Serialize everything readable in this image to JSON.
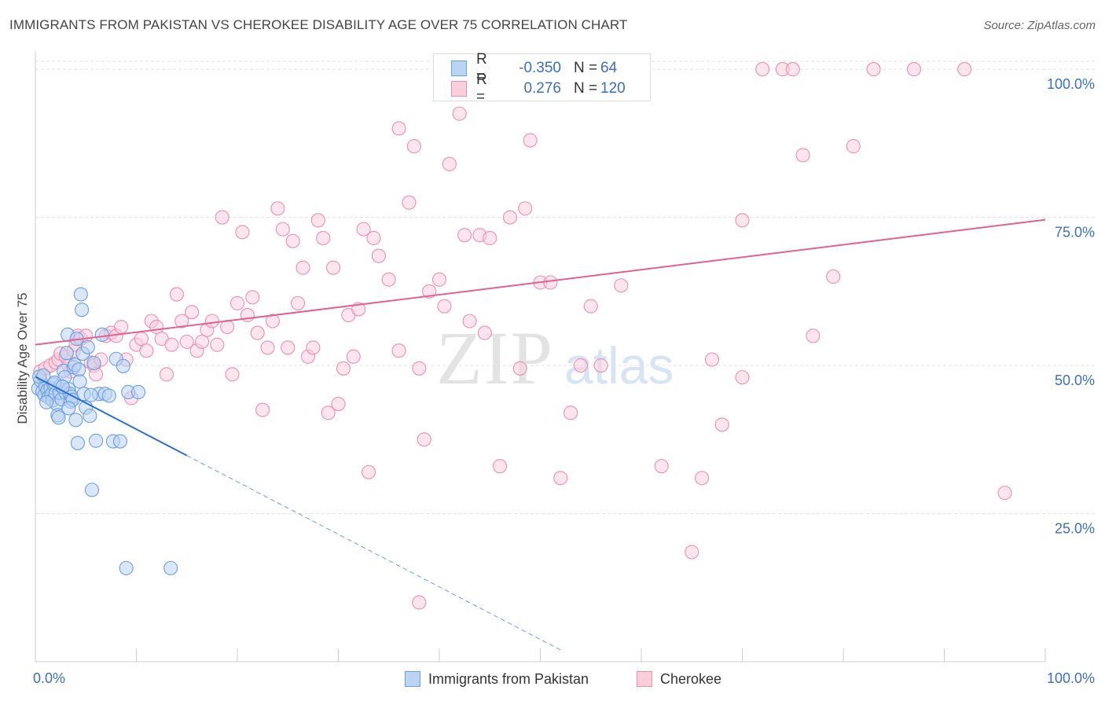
{
  "chart_data": {
    "type": "scatter",
    "title": "IMMIGRANTS FROM PAKISTAN VS CHEROKEE DISABILITY AGE OVER 75 CORRELATION CHART",
    "source": "Source: ZipAtlas.com",
    "ylabel": "Disability Age Over 75",
    "xlabel": "",
    "xlim": [
      0,
      100
    ],
    "ylim": [
      0,
      102
    ],
    "x_tick_labels": [
      "0.0%",
      "100.0%"
    ],
    "y_tick_labels": [
      {
        "value": 25,
        "label": "25.0%"
      },
      {
        "value": 50,
        "label": "50.0%"
      },
      {
        "value": 75,
        "label": "75.0%"
      },
      {
        "value": 100,
        "label": "100.0%"
      }
    ],
    "watermark": {
      "zip": "ZIP",
      "atlas": "atlas"
    },
    "legend_stats": [
      {
        "series": "Immigrants from Pakistan",
        "r_label": "R =",
        "r": "-0.350",
        "n_label": "N =",
        "n": "64"
      },
      {
        "series": "Cherokee",
        "r_label": "R =",
        "r": "0.276",
        "n_label": "N =",
        "n": "120"
      }
    ],
    "series": [
      {
        "name": "Immigrants from Pakistan",
        "color": "#6a9ee0",
        "fill": "#bcd4f3",
        "trend": {
          "x0": 0,
          "y0": 48.1,
          "x1": 15,
          "y1": 34.8,
          "dash_to_x": 52
        },
        "points": [
          [
            0.3,
            46.1
          ],
          [
            0.5,
            47.5
          ],
          [
            0.7,
            45.6
          ],
          [
            0.9,
            45.0
          ],
          [
            1.0,
            46.5
          ],
          [
            1.2,
            45.8
          ],
          [
            1.3,
            44.6
          ],
          [
            1.5,
            46.2
          ],
          [
            1.6,
            45.1
          ],
          [
            1.7,
            44.1
          ],
          [
            1.8,
            46.8
          ],
          [
            2.0,
            45.3
          ],
          [
            2.1,
            43.5
          ],
          [
            2.2,
            41.6
          ],
          [
            2.3,
            41.2
          ],
          [
            2.4,
            45.4
          ],
          [
            2.5,
            46.6
          ],
          [
            2.6,
            44.3
          ],
          [
            2.8,
            49.1
          ],
          [
            2.9,
            48.0
          ],
          [
            3.0,
            45.4
          ],
          [
            3.1,
            52.1
          ],
          [
            3.2,
            55.2
          ],
          [
            3.3,
            46.0
          ],
          [
            3.4,
            45.2
          ],
          [
            3.5,
            43.9
          ],
          [
            3.6,
            44.7
          ],
          [
            3.7,
            44.2
          ],
          [
            3.8,
            49.7
          ],
          [
            3.9,
            50.1
          ],
          [
            4.0,
            40.8
          ],
          [
            4.1,
            54.5
          ],
          [
            4.2,
            36.9
          ],
          [
            4.3,
            49.3
          ],
          [
            4.4,
            47.3
          ],
          [
            4.5,
            62.0
          ],
          [
            4.6,
            59.4
          ],
          [
            4.7,
            52.0
          ],
          [
            4.8,
            45.2
          ],
          [
            5.0,
            42.9
          ],
          [
            5.2,
            53.1
          ],
          [
            5.4,
            41.5
          ],
          [
            5.6,
            29.0
          ],
          [
            5.8,
            50.4
          ],
          [
            6.0,
            37.3
          ],
          [
            6.3,
            45.2
          ],
          [
            6.6,
            55.2
          ],
          [
            6.9,
            45.2
          ],
          [
            7.3,
            44.9
          ],
          [
            7.7,
            37.2
          ],
          [
            8.0,
            51.1
          ],
          [
            8.4,
            37.2
          ],
          [
            8.7,
            49.9
          ],
          [
            9.0,
            15.8
          ],
          [
            9.2,
            45.5
          ],
          [
            0.4,
            48.1
          ],
          [
            1.1,
            43.8
          ],
          [
            1.9,
            47.1
          ],
          [
            2.7,
            46.4
          ],
          [
            0.8,
            48.3
          ],
          [
            13.4,
            15.8
          ],
          [
            10.2,
            45.5
          ],
          [
            5.5,
            45.0
          ],
          [
            3.3,
            42.8
          ]
        ]
      },
      {
        "name": "Cherokee",
        "color": "#ea8fb0",
        "fill": "#f9cfdc",
        "trend": {
          "x0": 0,
          "y0": 53.5,
          "x1": 100,
          "y1": 74.6
        },
        "points": [
          [
            0.5,
            49.0
          ],
          [
            1.0,
            49.5
          ],
          [
            1.5,
            50.0
          ],
          [
            2.0,
            50.5
          ],
          [
            2.3,
            51.0
          ],
          [
            2.5,
            52.0
          ],
          [
            3.0,
            51.5
          ],
          [
            3.3,
            50.0
          ],
          [
            3.5,
            49.0
          ],
          [
            3.8,
            52.5
          ],
          [
            4.0,
            53.5
          ],
          [
            4.2,
            55.0
          ],
          [
            4.5,
            54.5
          ],
          [
            5.0,
            55.0
          ],
          [
            5.5,
            50.5
          ],
          [
            5.8,
            50.0
          ],
          [
            6.0,
            48.5
          ],
          [
            6.5,
            51.0
          ],
          [
            7.0,
            55.0
          ],
          [
            7.5,
            55.5
          ],
          [
            8.0,
            55.0
          ],
          [
            8.5,
            56.5
          ],
          [
            9.0,
            51.0
          ],
          [
            9.5,
            44.5
          ],
          [
            10.0,
            53.5
          ],
          [
            10.5,
            54.5
          ],
          [
            11.0,
            52.5
          ],
          [
            11.5,
            57.5
          ],
          [
            12.0,
            56.5
          ],
          [
            12.5,
            54.5
          ],
          [
            13.0,
            48.5
          ],
          [
            13.5,
            53.5
          ],
          [
            14.0,
            62.0
          ],
          [
            14.5,
            57.5
          ],
          [
            15.0,
            54.0
          ],
          [
            15.5,
            59.0
          ],
          [
            16.0,
            52.5
          ],
          [
            16.5,
            54.0
          ],
          [
            17.0,
            56.0
          ],
          [
            17.5,
            57.5
          ],
          [
            18.0,
            53.5
          ],
          [
            18.5,
            75.0
          ],
          [
            19.0,
            56.5
          ],
          [
            19.5,
            48.5
          ],
          [
            20.0,
            60.5
          ],
          [
            20.5,
            72.5
          ],
          [
            21.0,
            58.5
          ],
          [
            21.5,
            61.5
          ],
          [
            22.0,
            55.5
          ],
          [
            22.5,
            42.5
          ],
          [
            23.0,
            53.0
          ],
          [
            23.5,
            57.5
          ],
          [
            24.0,
            76.5
          ],
          [
            24.5,
            73.0
          ],
          [
            25.0,
            53.0
          ],
          [
            25.5,
            71.0
          ],
          [
            26.0,
            60.5
          ],
          [
            26.5,
            66.5
          ],
          [
            27.0,
            51.5
          ],
          [
            27.5,
            53.0
          ],
          [
            28.0,
            74.5
          ],
          [
            28.5,
            71.5
          ],
          [
            29.0,
            42.0
          ],
          [
            29.5,
            66.5
          ],
          [
            30.0,
            43.5
          ],
          [
            30.5,
            49.5
          ],
          [
            31.0,
            58.5
          ],
          [
            31.5,
            51.5
          ],
          [
            32.0,
            59.5
          ],
          [
            32.5,
            73.0
          ],
          [
            33.0,
            32.0
          ],
          [
            33.5,
            71.5
          ],
          [
            34.0,
            68.5
          ],
          [
            35.0,
            64.5
          ],
          [
            36.0,
            52.5
          ],
          [
            37.0,
            77.5
          ],
          [
            37.5,
            87.0
          ],
          [
            38.0,
            49.5
          ],
          [
            38.5,
            37.5
          ],
          [
            39.0,
            62.5
          ],
          [
            40.0,
            64.5
          ],
          [
            40.5,
            60.0
          ],
          [
            41.0,
            84.0
          ],
          [
            42.0,
            92.5
          ],
          [
            42.5,
            72.0
          ],
          [
            43.0,
            57.5
          ],
          [
            44.0,
            72.0
          ],
          [
            44.5,
            55.5
          ],
          [
            45.0,
            71.5
          ],
          [
            46.0,
            33.0
          ],
          [
            47.0,
            75.0
          ],
          [
            48.0,
            49.5
          ],
          [
            48.5,
            76.5
          ],
          [
            49.0,
            88.0
          ],
          [
            50.0,
            64.0
          ],
          [
            51.0,
            64.0
          ],
          [
            52.0,
            31.0
          ],
          [
            53.0,
            42.0
          ],
          [
            54.0,
            50.0
          ],
          [
            55.0,
            60.0
          ],
          [
            56.0,
            50.0
          ],
          [
            58.0,
            63.5
          ],
          [
            60.0,
            100.0
          ],
          [
            62.0,
            33.0
          ],
          [
            65.0,
            18.5
          ],
          [
            66.0,
            31.0
          ],
          [
            67.0,
            51.0
          ],
          [
            68.0,
            40.0
          ],
          [
            70.0,
            48.0
          ],
          [
            72.0,
            100.0
          ],
          [
            74.0,
            100.0
          ],
          [
            75.0,
            100.0
          ],
          [
            76.0,
            85.5
          ],
          [
            77.0,
            55.0
          ],
          [
            79.0,
            65.0
          ],
          [
            81.0,
            87.0
          ],
          [
            83.0,
            100.0
          ],
          [
            87.0,
            100.0
          ],
          [
            92.0,
            100.0
          ],
          [
            96.0,
            28.5
          ],
          [
            36.0,
            90.0
          ],
          [
            38.0,
            10.0
          ],
          [
            70.0,
            74.5
          ]
        ]
      }
    ]
  }
}
